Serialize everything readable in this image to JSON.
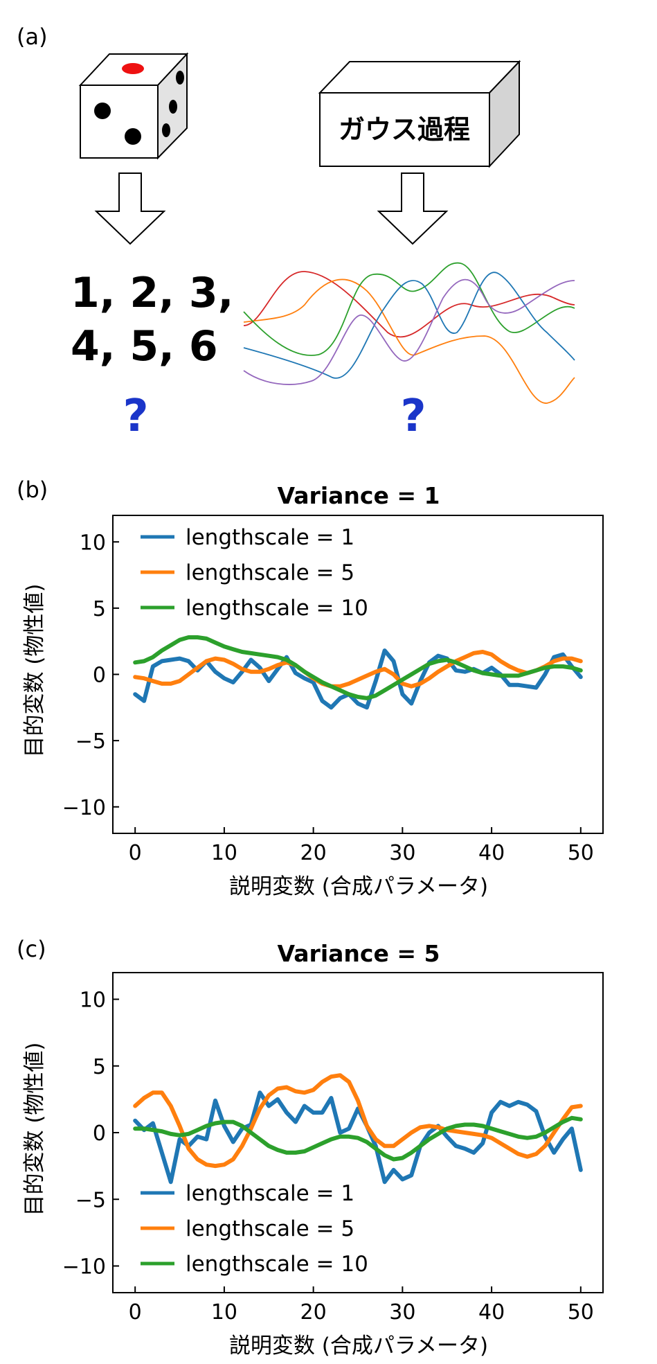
{
  "panel_a": {
    "label": "(a)",
    "numbers_line1": "1, 2, 3,",
    "numbers_line2": "4, 5, 6",
    "box_label": "ガウス過程",
    "question_left": "?",
    "question_right": "?",
    "sample_colors": [
      "#d62728",
      "#ff7f0e",
      "#2ca02c",
      "#1f77b4",
      "#9467bd"
    ]
  },
  "colors": {
    "ls1": "#1f77b4",
    "ls5": "#ff7f0e",
    "ls10": "#2ca02c"
  },
  "chart_data": [
    {
      "type": "line",
      "panel_label": "(b)",
      "title": "Variance = 1",
      "xlabel": "説明変数 (合成パラメータ)",
      "ylabel": "目的変数 (物性値)",
      "xlim": [
        -2.5,
        52.5
      ],
      "ylim": [
        -12,
        12
      ],
      "xticks": [
        0,
        10,
        20,
        30,
        40,
        50
      ],
      "yticks": [
        10,
        5,
        0,
        -5,
        -10
      ],
      "ytick_labels": [
        "10",
        "5",
        "0",
        "−5",
        "−10"
      ],
      "legend_position": "upper-left",
      "x": [
        0,
        1,
        2,
        3,
        4,
        5,
        6,
        7,
        8,
        9,
        10,
        11,
        12,
        13,
        14,
        15,
        16,
        17,
        18,
        19,
        20,
        21,
        22,
        23,
        24,
        25,
        26,
        27,
        28,
        29,
        30,
        31,
        32,
        33,
        34,
        35,
        36,
        37,
        38,
        39,
        40,
        41,
        42,
        43,
        44,
        45,
        46,
        47,
        48,
        49,
        50
      ],
      "series": [
        {
          "name": "lengthscale = 1",
          "color": "#1f77b4",
          "values": [
            -1.5,
            -2.0,
            0.6,
            1.0,
            1.1,
            1.2,
            1.0,
            0.3,
            1.0,
            0.2,
            -0.3,
            -0.6,
            0.2,
            1.1,
            0.5,
            -0.5,
            0.4,
            1.3,
            0.1,
            -0.3,
            -0.6,
            -2.0,
            -2.5,
            -1.8,
            -1.5,
            -2.2,
            -2.5,
            -0.5,
            1.8,
            1.0,
            -1.5,
            -2.2,
            -0.5,
            0.9,
            1.4,
            1.2,
            0.3,
            0.2,
            0.4,
            0.1,
            0.5,
            0.0,
            -0.8,
            -0.8,
            -0.9,
            -1.0,
            0.0,
            1.3,
            1.5,
            0.6,
            -0.2
          ]
        },
        {
          "name": "lengthscale = 5",
          "color": "#ff7f0e",
          "values": [
            -0.2,
            -0.3,
            -0.5,
            -0.7,
            -0.7,
            -0.5,
            0.0,
            0.5,
            1.0,
            1.2,
            1.1,
            0.8,
            0.4,
            0.2,
            0.2,
            0.4,
            0.7,
            0.9,
            0.7,
            0.2,
            -0.3,
            -0.7,
            -0.9,
            -0.9,
            -0.7,
            -0.4,
            -0.1,
            0.2,
            0.4,
            0.0,
            -0.7,
            -0.9,
            -0.7,
            -0.3,
            0.2,
            0.6,
            1.0,
            1.3,
            1.6,
            1.7,
            1.5,
            1.0,
            0.6,
            0.3,
            0.1,
            0.3,
            0.6,
            1.0,
            1.2,
            1.2,
            1.0
          ]
        },
        {
          "name": "lengthscale = 10",
          "color": "#2ca02c",
          "values": [
            0.9,
            1.0,
            1.3,
            1.8,
            2.2,
            2.6,
            2.8,
            2.8,
            2.7,
            2.4,
            2.1,
            1.9,
            1.7,
            1.6,
            1.5,
            1.4,
            1.3,
            1.1,
            0.7,
            0.2,
            -0.2,
            -0.6,
            -0.9,
            -1.2,
            -1.5,
            -1.7,
            -1.8,
            -1.6,
            -1.2,
            -0.8,
            -0.4,
            0.0,
            0.4,
            0.8,
            1.0,
            1.1,
            0.9,
            0.6,
            0.3,
            0.1,
            0.0,
            -0.1,
            -0.1,
            -0.1,
            0.1,
            0.3,
            0.5,
            0.6,
            0.6,
            0.5,
            0.3
          ]
        }
      ]
    },
    {
      "type": "line",
      "panel_label": "(c)",
      "title": "Variance = 5",
      "xlabel": "説明変数 (合成パラメータ)",
      "ylabel": "目的変数 (物性値)",
      "xlim": [
        -2.5,
        52.5
      ],
      "ylim": [
        -12,
        12
      ],
      "xticks": [
        0,
        10,
        20,
        30,
        40,
        50
      ],
      "yticks": [
        10,
        5,
        0,
        -5,
        -10
      ],
      "ytick_labels": [
        "10",
        "5",
        "0",
        "−5",
        "−10"
      ],
      "legend_position": "lower-left",
      "x": [
        0,
        1,
        2,
        3,
        4,
        5,
        6,
        7,
        8,
        9,
        10,
        11,
        12,
        13,
        14,
        15,
        16,
        17,
        18,
        19,
        20,
        21,
        22,
        23,
        24,
        25,
        26,
        27,
        28,
        29,
        30,
        31,
        32,
        33,
        34,
        35,
        36,
        37,
        38,
        39,
        40,
        41,
        42,
        43,
        44,
        45,
        46,
        47,
        48,
        49,
        50
      ],
      "series": [
        {
          "name": "lengthscale = 1",
          "color": "#1f77b4",
          "values": [
            0.9,
            0.2,
            0.7,
            -1.5,
            -3.7,
            -0.5,
            -1.0,
            -0.3,
            -0.5,
            2.4,
            0.5,
            -0.7,
            0.3,
            0.6,
            3.0,
            2.0,
            2.5,
            1.5,
            0.8,
            2.0,
            1.5,
            1.5,
            2.6,
            0.0,
            0.3,
            1.8,
            0.5,
            -1.0,
            -3.7,
            -2.8,
            -3.5,
            -3.2,
            -1.0,
            0.0,
            0.5,
            -0.3,
            -1.0,
            -1.2,
            -1.5,
            -0.8,
            1.5,
            2.3,
            2.0,
            2.3,
            2.1,
            1.6,
            -0.3,
            -1.5,
            -0.5,
            0.3,
            -2.8
          ]
        },
        {
          "name": "lengthscale = 5",
          "color": "#ff7f0e",
          "values": [
            2.0,
            2.6,
            3.0,
            3.0,
            2.0,
            0.5,
            -1.2,
            -2.0,
            -2.4,
            -2.5,
            -2.4,
            -2.0,
            -1.0,
            0.3,
            1.8,
            2.8,
            3.3,
            3.4,
            3.1,
            3.0,
            3.2,
            3.8,
            4.2,
            4.3,
            3.8,
            2.4,
            0.5,
            -0.5,
            -1.0,
            -1.0,
            -0.5,
            0.0,
            0.4,
            0.5,
            0.4,
            0.2,
            0.1,
            0.0,
            -0.1,
            -0.2,
            -0.4,
            -0.8,
            -1.2,
            -1.6,
            -1.8,
            -1.6,
            -1.0,
            0.0,
            1.0,
            1.9,
            2.0
          ]
        },
        {
          "name": "lengthscale = 10",
          "color": "#2ca02c",
          "values": [
            0.3,
            0.3,
            0.2,
            0.1,
            -0.1,
            -0.2,
            -0.1,
            0.2,
            0.5,
            0.7,
            0.8,
            0.8,
            0.5,
            0.0,
            -0.5,
            -1.0,
            -1.3,
            -1.5,
            -1.5,
            -1.4,
            -1.1,
            -0.8,
            -0.5,
            -0.3,
            -0.3,
            -0.4,
            -0.7,
            -1.2,
            -1.7,
            -2.0,
            -1.9,
            -1.5,
            -1.0,
            -0.5,
            -0.1,
            0.3,
            0.5,
            0.6,
            0.6,
            0.5,
            0.3,
            0.1,
            -0.1,
            -0.3,
            -0.4,
            -0.3,
            0.0,
            0.4,
            0.8,
            1.1,
            1.0
          ]
        }
      ]
    }
  ]
}
